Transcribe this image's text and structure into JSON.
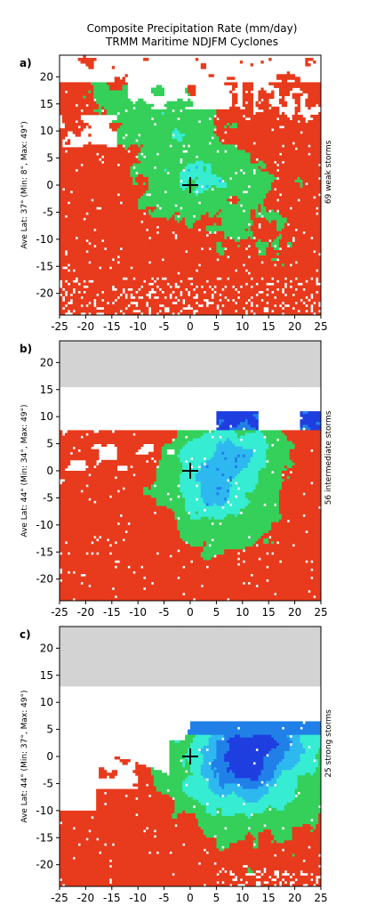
{
  "figure": {
    "title_line1": "Composite Precipitation Rate (mm/day)",
    "title_line2": "TRMM Maritime NDJFM Cyclones"
  },
  "colors": {
    "heavy": "#e83a1c",
    "moderate": "#34d05a",
    "light": "#36ecd2",
    "lighter": "#2eb8f0",
    "very_light": "#2080e8",
    "minimal": "#1e3ee0",
    "blocked": "#d3d3d3"
  },
  "chart_data": [
    {
      "type": "heatmap",
      "panel_label": "a)",
      "ylabel": "Ave Lat: 37° (Min: 8°, Max: 49°)",
      "right_label": "69 weak storms",
      "xlim": [
        -25,
        25
      ],
      "ylim": [
        -24,
        24
      ],
      "xticks": [
        "-25",
        "-20",
        "-15",
        "-10",
        "-5",
        "0",
        "5",
        "10",
        "15",
        "20",
        "25"
      ],
      "yticks": [
        "20",
        "15",
        "10",
        "5",
        "0",
        "-5",
        "-10",
        "-15",
        "-20"
      ],
      "ytick_values": [
        20,
        15,
        10,
        5,
        0,
        -5,
        -10,
        -15,
        -20
      ],
      "center_marker": [
        0,
        0
      ],
      "masked_above": null
    },
    {
      "type": "heatmap",
      "panel_label": "b)",
      "ylabel": "Ave Lat: 44° (Min: 34°, Max: 49°)",
      "right_label": "56 intermediate storms",
      "xlim": [
        -25,
        25
      ],
      "ylim": [
        -24,
        24
      ],
      "xticks": [
        "-25",
        "-20",
        "-15",
        "-10",
        "-5",
        "0",
        "5",
        "10",
        "15",
        "20",
        "25"
      ],
      "yticks": [
        "20",
        "15",
        "10",
        "5",
        "0",
        "-5",
        "-10",
        "-15",
        "-20"
      ],
      "ytick_values": [
        20,
        15,
        10,
        5,
        0,
        -5,
        -10,
        -15,
        -20
      ],
      "center_marker": [
        0,
        0
      ],
      "masked_above": 15.3
    },
    {
      "type": "heatmap",
      "panel_label": "c)",
      "ylabel": "Ave Lat: 44° (Min: 37°, Max: 49°)",
      "right_label": "25 strong storms",
      "xlim": [
        -25,
        25
      ],
      "ylim": [
        -24,
        24
      ],
      "xticks": [
        "-25",
        "-20",
        "-15",
        "-10",
        "-5",
        "0",
        "5",
        "10",
        "15",
        "20",
        "25"
      ],
      "yticks": [
        "20",
        "15",
        "10",
        "5",
        "0",
        "-5",
        "-10",
        "-15",
        "-20"
      ],
      "ytick_values": [
        20,
        15,
        10,
        5,
        0,
        -5,
        -10,
        -15,
        -20
      ],
      "center_marker": [
        0,
        0
      ],
      "masked_above": 12.8
    }
  ]
}
